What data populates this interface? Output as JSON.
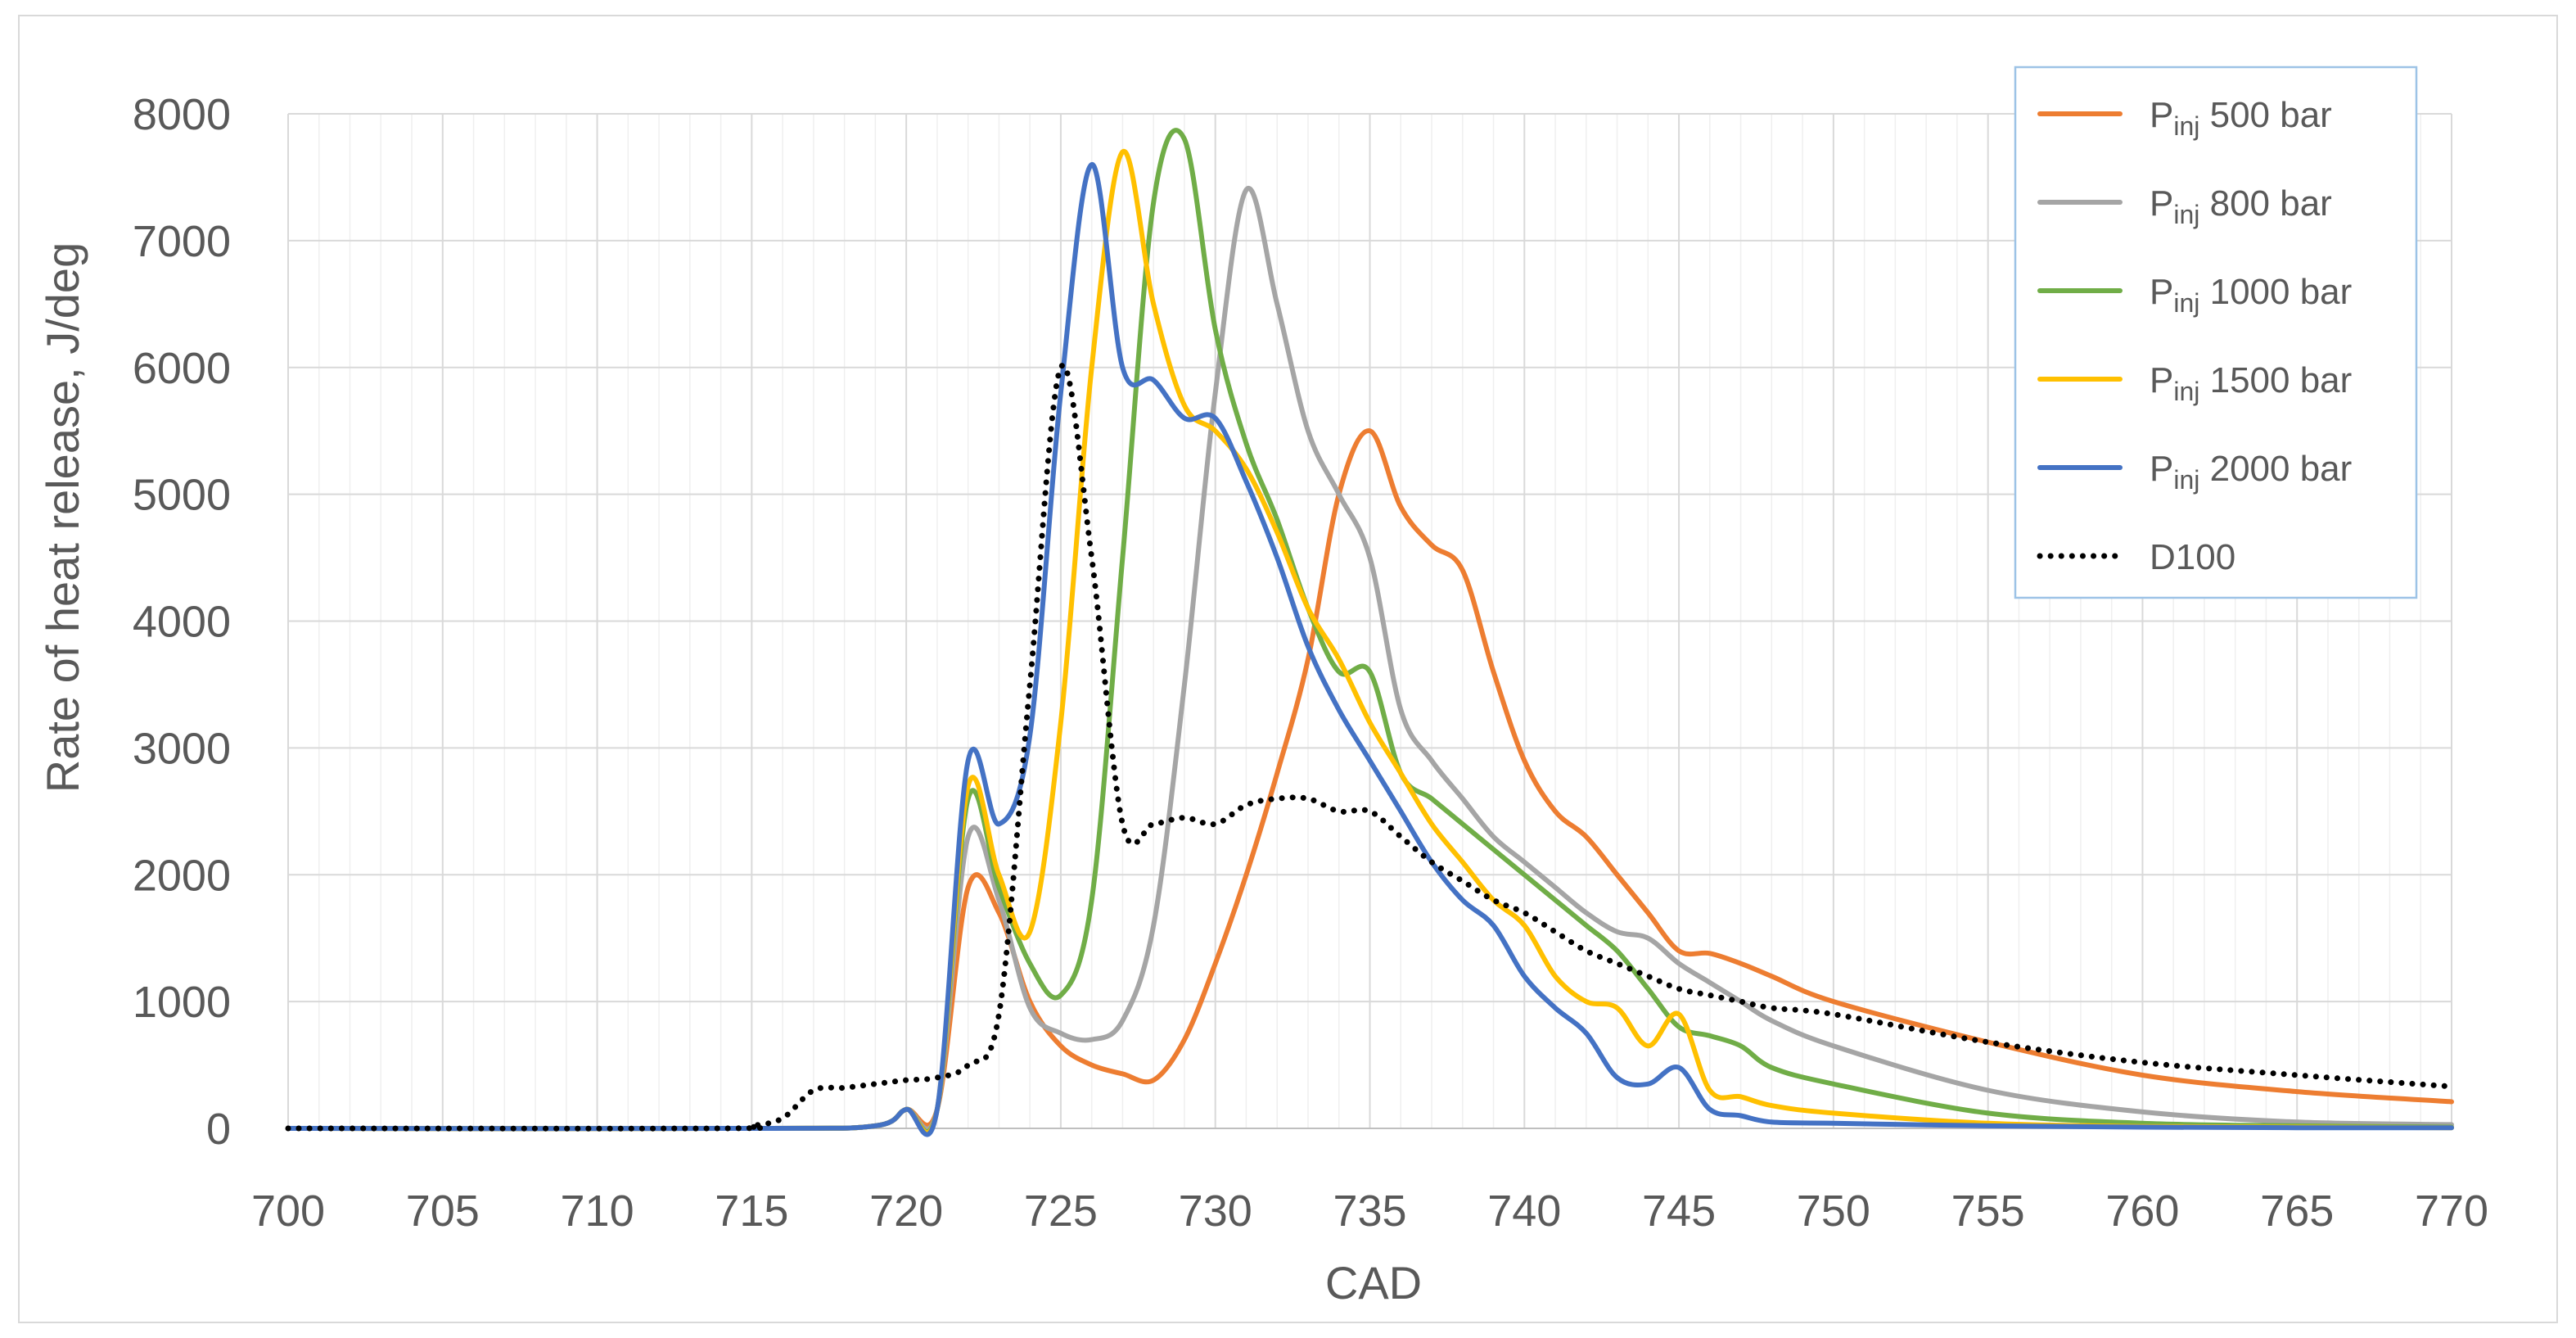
{
  "chart_data": {
    "type": "line",
    "title": "",
    "xlabel": "CAD",
    "ylabel": "Rate of heat release, J/deg",
    "xlim": [
      700,
      770
    ],
    "ylim": [
      0,
      8000
    ],
    "xticks": [
      700,
      705,
      710,
      715,
      720,
      725,
      730,
      735,
      740,
      745,
      750,
      755,
      760,
      765,
      770
    ],
    "yticks": [
      0,
      1000,
      2000,
      3000,
      4000,
      5000,
      6000,
      7000,
      8000
    ],
    "grid": {
      "major_x": true,
      "minor_x": true,
      "major_y": true
    },
    "legend_position": "top-right",
    "series": [
      {
        "name": "P",
        "name_sub": "inj",
        "name_suffix": " 500 bar",
        "color": "#ED7D31",
        "dash": "solid",
        "x": [
          700,
          715,
          719,
          720,
          721,
          722,
          723,
          724,
          725,
          726,
          727,
          728,
          729,
          730,
          731,
          732,
          733,
          734,
          735,
          736,
          737,
          738,
          739,
          740,
          741,
          742,
          743,
          744,
          745,
          746,
          747,
          748,
          750,
          755,
          760,
          765,
          770
        ],
        "y": [
          0,
          0,
          20,
          150,
          150,
          1900,
          1700,
          1000,
          650,
          500,
          430,
          380,
          700,
          1300,
          2000,
          2800,
          3700,
          5000,
          5500,
          4900,
          4600,
          4400,
          3600,
          2900,
          2500,
          2300,
          2000,
          1700,
          1400,
          1380,
          1300,
          1200,
          1000,
          680,
          420,
          290,
          210
        ]
      },
      {
        "name": "P",
        "name_sub": "inj",
        "name_suffix": " 800 bar",
        "color": "#A5A5A5",
        "dash": "solid",
        "x": [
          700,
          715,
          719,
          720,
          721,
          722,
          723,
          724,
          725,
          726,
          727,
          728,
          729,
          730,
          731,
          732,
          733,
          734,
          735,
          736,
          737,
          738,
          739,
          740,
          741,
          742,
          743,
          744,
          745,
          746,
          747,
          748,
          750,
          755,
          760,
          765,
          770
        ],
        "y": [
          0,
          0,
          20,
          150,
          150,
          2300,
          1800,
          950,
          750,
          700,
          850,
          1600,
          3500,
          5800,
          7400,
          6500,
          5500,
          5000,
          4500,
          3300,
          2900,
          2600,
          2300,
          2100,
          1900,
          1700,
          1550,
          1500,
          1300,
          1150,
          1000,
          850,
          650,
          300,
          130,
          50,
          30
        ]
      },
      {
        "name": "P",
        "name_sub": "inj",
        "name_suffix": " 1000 bar",
        "color": "#70AD47",
        "dash": "solid",
        "x": [
          700,
          715,
          719,
          720,
          721,
          722,
          723,
          724,
          725,
          726,
          727,
          728,
          729,
          730,
          731,
          732,
          733,
          734,
          735,
          736,
          737,
          738,
          739,
          740,
          741,
          742,
          743,
          744,
          745,
          746,
          747,
          748,
          750,
          755,
          760,
          765,
          770
        ],
        "y": [
          0,
          0,
          20,
          150,
          150,
          2600,
          1900,
          1300,
          1050,
          1800,
          4500,
          7300,
          7800,
          6300,
          5400,
          4800,
          4100,
          3600,
          3600,
          2800,
          2600,
          2400,
          2200,
          2000,
          1800,
          1600,
          1400,
          1100,
          800,
          730,
          650,
          480,
          350,
          120,
          40,
          20,
          10
        ]
      },
      {
        "name": "P",
        "name_sub": "inj",
        "name_suffix": " 1500 bar",
        "color": "#FFC000",
        "dash": "solid",
        "x": [
          700,
          715,
          719,
          720,
          721,
          722,
          723,
          724,
          725,
          726,
          727,
          728,
          729,
          730,
          731,
          732,
          733,
          734,
          735,
          736,
          737,
          738,
          739,
          740,
          741,
          742,
          743,
          744,
          745,
          746,
          747,
          748,
          750,
          755,
          760,
          765,
          770
        ],
        "y": [
          0,
          0,
          20,
          150,
          150,
          2700,
          2000,
          1550,
          3200,
          6000,
          7700,
          6500,
          5700,
          5500,
          5200,
          4700,
          4100,
          3700,
          3200,
          2800,
          2400,
          2100,
          1800,
          1600,
          1200,
          1000,
          950,
          650,
          900,
          300,
          250,
          180,
          120,
          40,
          15,
          10,
          5
        ]
      },
      {
        "name": "P",
        "name_sub": "inj",
        "name_suffix": " 2000 bar",
        "color": "#4472C4",
        "dash": "solid",
        "x": [
          700,
          715,
          719,
          720,
          721,
          722,
          723,
          724,
          725,
          726,
          727,
          728,
          729,
          730,
          731,
          732,
          733,
          734,
          735,
          736,
          737,
          738,
          739,
          740,
          741,
          742,
          743,
          744,
          745,
          746,
          747,
          748,
          750,
          755,
          760,
          765,
          770
        ],
        "y": [
          0,
          0,
          20,
          150,
          150,
          2900,
          2400,
          3100,
          5800,
          7600,
          6000,
          5900,
          5600,
          5600,
          5100,
          4500,
          3800,
          3300,
          2900,
          2500,
          2100,
          1800,
          1600,
          1200,
          950,
          750,
          400,
          350,
          480,
          150,
          100,
          50,
          40,
          20,
          10,
          5,
          5
        ]
      },
      {
        "name": "D100",
        "color": "#000000",
        "dash": "dotted",
        "x": [
          700,
          714,
          715,
          716,
          717,
          718,
          719,
          720,
          721,
          722,
          723,
          724,
          725,
          726,
          727,
          728,
          729,
          730,
          731,
          732,
          733,
          734,
          735,
          736,
          737,
          738,
          739,
          740,
          741,
          742,
          743,
          744,
          745,
          746,
          747,
          748,
          750,
          755,
          760,
          765,
          770
        ],
        "y": [
          0,
          0,
          20,
          80,
          300,
          320,
          350,
          380,
          400,
          500,
          900,
          3500,
          6000,
          4500,
          2400,
          2400,
          2450,
          2400,
          2550,
          2600,
          2600,
          2500,
          2500,
          2300,
          2100,
          1950,
          1800,
          1700,
          1550,
          1400,
          1300,
          1200,
          1100,
          1050,
          1000,
          950,
          900,
          680,
          520,
          420,
          330
        ]
      }
    ]
  }
}
